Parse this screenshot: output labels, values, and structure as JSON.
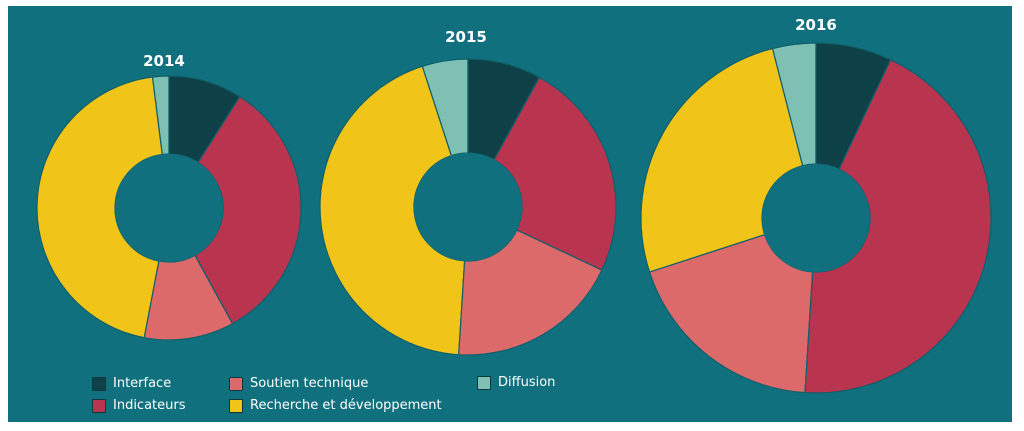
{
  "chart_data": {
    "type": "pie",
    "subtype": "donut",
    "categories": [
      "Interface",
      "Indicateurs",
      "Soutien technique",
      "Recherche et développement",
      "Diffusion"
    ],
    "colors": {
      "Interface": "#0d4147",
      "Indicateurs": "#b8344f",
      "Soutien technique": "#dc6a6a",
      "Recherche et développement": "#f0c419",
      "Diffusion": "#7fc0b4"
    },
    "charts": [
      {
        "title": "2014",
        "values": [
          9,
          33,
          11,
          45,
          2
        ]
      },
      {
        "title": "2015",
        "values": [
          8,
          24,
          19,
          44,
          5
        ]
      },
      {
        "title": "2016",
        "values": [
          7,
          44,
          19,
          26,
          4
        ]
      }
    ],
    "legend_position": "bottom-left"
  },
  "legend": {
    "items": [
      {
        "label": "Interface",
        "color": "#0d4147"
      },
      {
        "label": "Indicateurs",
        "color": "#b8344f"
      },
      {
        "label": "Soutien technique",
        "color": "#dc6a6a"
      },
      {
        "label": "Recherche et développement",
        "color": "#f0c419"
      },
      {
        "label": "Diffusion",
        "color": "#7fc0b4"
      }
    ]
  }
}
